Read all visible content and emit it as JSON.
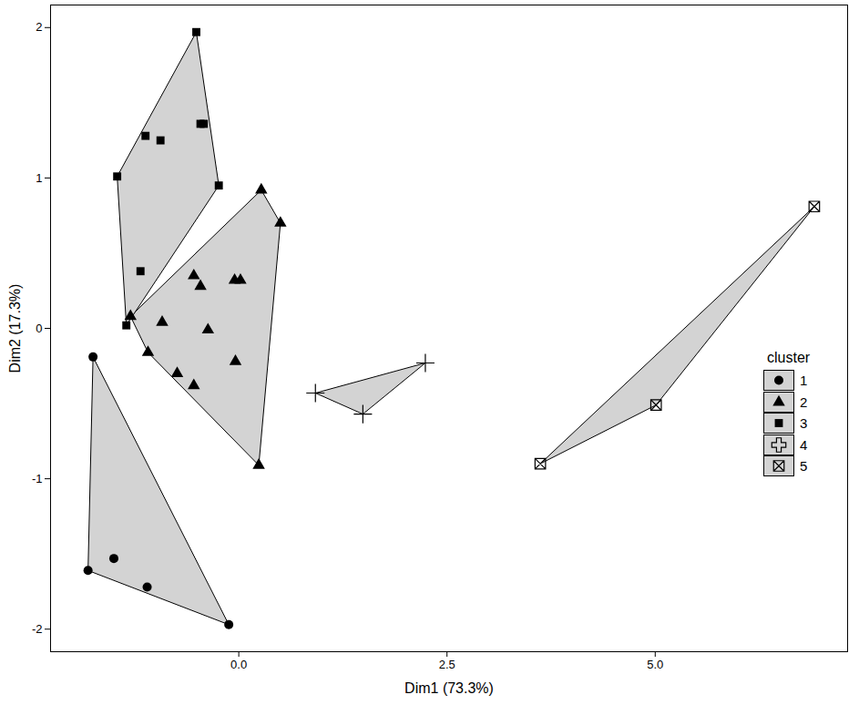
{
  "chart_data": {
    "type": "scatter",
    "x_label": "Dim1 (73.3%)",
    "y_label": "Dim2 (17.3%)",
    "xlim": [
      -2.26,
      7.31
    ],
    "ylim": [
      -2.15,
      2.15
    ],
    "xticks": [
      {
        "value": 0,
        "label": "0.0"
      },
      2.5,
      {
        "value": 5,
        "label": "5.0"
      }
    ],
    "yticks": [
      -2,
      -1,
      0,
      1,
      2
    ],
    "grid": false,
    "legend": "right",
    "legend_title": "cluster",
    "series": [
      {
        "name": "1",
        "marker": "circle",
        "color": "#000000",
        "x": [
          -1.75,
          -1.81,
          -1.5,
          -1.1,
          -0.12
        ],
        "y": [
          -0.19,
          -1.61,
          -1.53,
          -1.72,
          -1.97
        ]
      },
      {
        "name": "2",
        "marker": "triangle",
        "color": "#000000",
        "x": [
          -1.3,
          0.27,
          0.5,
          -0.54,
          -0.46,
          -0.05,
          0.02,
          -0.92,
          -0.37,
          -1.09,
          -0.74,
          -0.54,
          -0.04,
          0.24
        ],
        "y": [
          0.08,
          0.92,
          0.7,
          0.35,
          0.28,
          0.32,
          0.32,
          0.04,
          -0.01,
          -0.16,
          -0.3,
          -0.38,
          -0.22,
          -0.91
        ]
      },
      {
        "name": "3",
        "marker": "square",
        "color": "#000000",
        "x": [
          -0.51,
          -1.12,
          -0.94,
          -0.46,
          -0.42,
          -1.46,
          -0.24,
          -1.18,
          -1.35
        ],
        "y": [
          1.97,
          1.28,
          1.25,
          1.36,
          1.36,
          1.01,
          0.95,
          0.38,
          0.02
        ]
      },
      {
        "name": "4",
        "marker": "plus",
        "color": "#000000",
        "x": [
          0.92,
          1.49,
          2.24
        ],
        "y": [
          -0.43,
          -0.57,
          -0.23
        ]
      },
      {
        "name": "5",
        "marker": "square_x",
        "color": "#000000",
        "x": [
          3.62,
          5.01,
          6.91
        ],
        "y": [
          -0.9,
          -0.51,
          0.81
        ]
      }
    ]
  }
}
